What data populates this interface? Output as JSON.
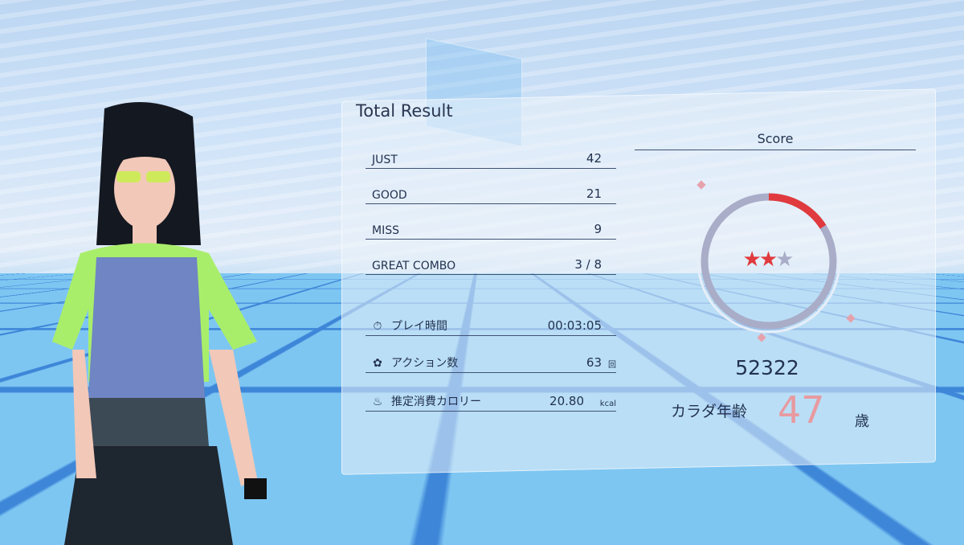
{
  "title": "Total Result",
  "judgements": [
    {
      "label": "JUST",
      "value": "42"
    },
    {
      "label": "GOOD",
      "value": "21"
    },
    {
      "label": "MISS",
      "value": "9"
    },
    {
      "label": "GREAT COMBO",
      "value": "3 / 8"
    }
  ],
  "stats": [
    {
      "icon": "stopwatch-icon",
      "label": "プレイ時間",
      "value": "00:03:05",
      "unit": ""
    },
    {
      "icon": "paw-icon",
      "label": "アクション数",
      "value": "63",
      "unit": "回"
    },
    {
      "icon": "flame-icon",
      "label": "推定消費カロリー",
      "value": "20.80",
      "unit": "kcal"
    }
  ],
  "score": {
    "header": "Score",
    "value": "52322",
    "ring_progress": 0.16,
    "stars_filled": 2,
    "stars_total": 3,
    "star_glyph": "★"
  },
  "body_age": {
    "label": "カラダ年齢",
    "value": "47",
    "unit": "歳"
  },
  "colors": {
    "accent": "#e03a3e",
    "ring": "#a9adc8",
    "age": "#e79aa0"
  }
}
